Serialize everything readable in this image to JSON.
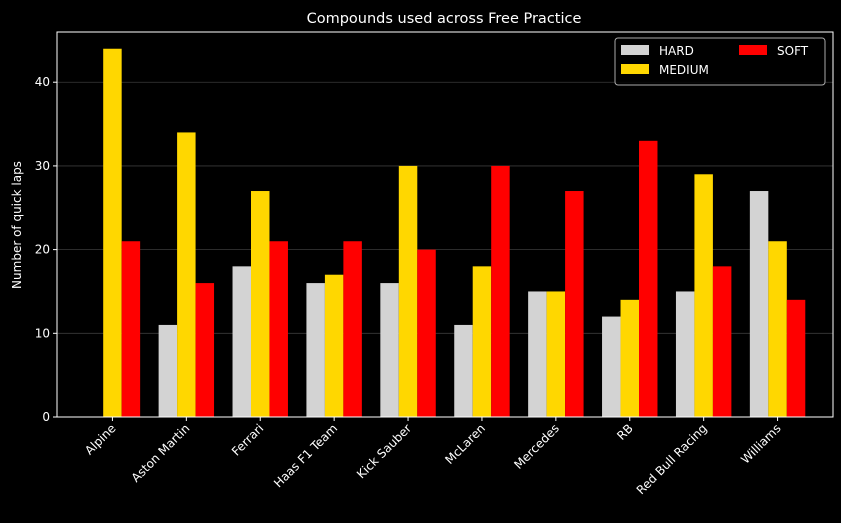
{
  "chart_data": {
    "type": "bar",
    "title": "Compounds used across Free Practice",
    "xlabel": "",
    "ylabel": "Number of quick laps",
    "ylim": [
      0,
      46
    ],
    "yticks": [
      0,
      10,
      20,
      30,
      40
    ],
    "grid": true,
    "legend_position": "top-right",
    "categories": [
      "Alpine",
      "Aston Martin",
      "Ferrari",
      "Haas F1 Team",
      "Kick Sauber",
      "McLaren",
      "Mercedes",
      "RB",
      "Red Bull Racing",
      "Williams"
    ],
    "series": [
      {
        "name": "HARD",
        "color": "#d3d3d3",
        "values": [
          0,
          11,
          18,
          16,
          16,
          11,
          15,
          12,
          15,
          27
        ]
      },
      {
        "name": "MEDIUM",
        "color": "#ffd700",
        "values": [
          44,
          34,
          27,
          17,
          30,
          18,
          15,
          14,
          29,
          21
        ]
      },
      {
        "name": "SOFT",
        "color": "#ff0000",
        "values": [
          21,
          16,
          21,
          21,
          20,
          30,
          27,
          33,
          18,
          14
        ]
      }
    ]
  }
}
